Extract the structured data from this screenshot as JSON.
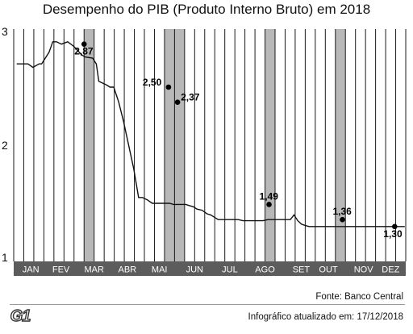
{
  "chart_data": {
    "type": "line",
    "title": "Desempenho do PIB (Produto Interno Bruto) em 2018",
    "xlabel": "",
    "ylabel": "",
    "ylim": [
      1,
      3
    ],
    "yticks": [
      "1",
      "2",
      "3"
    ],
    "months": [
      "JAN",
      "FEV",
      "MAR",
      "ABR",
      "MAI",
      "JUN",
      "JUL",
      "AGO",
      "SET",
      "OUT",
      "NOV",
      "DEZ"
    ],
    "grid": true,
    "series": [
      {
        "x": [
          0,
          0.5,
          0.9,
          1.3,
          1.8,
          2.0,
          2.6,
          2.9,
          3.2,
          3.6,
          4.1,
          4.6,
          5.2,
          5.5,
          6.1,
          6.4,
          6.6,
          7.2,
          7.5,
          7.8,
          8.2,
          8.6,
          9.0,
          9.4,
          9.8,
          10.1,
          10.5,
          10.9,
          11.2,
          11.5,
          11.7,
          11.9,
          12.1,
          12.3,
          12.6,
          12.8,
          13.0,
          13.3,
          13.6,
          13.9,
          14.2,
          14.5,
          14.9,
          15.3,
          15.6,
          15.9,
          16.2,
          16.5,
          16.8,
          17.1,
          17.4,
          17.8,
          18.2,
          18.6,
          19.0,
          19.4,
          19.8,
          20.2,
          20.5,
          20.8,
          21.1,
          21.4,
          21.7,
          22.0,
          22.3,
          22.6,
          22.9,
          23.2,
          23.5,
          23.8,
          24.1,
          24.4,
          24.7,
          25.0,
          25.3,
          25.6,
          25.9,
          26.2,
          26.5,
          26.8,
          27.1,
          27.4,
          27.7,
          28.0,
          28.3,
          28.6,
          28.9,
          29.2,
          29.5,
          29.8,
          30.1,
          30.4,
          30.8,
          31.2
        ],
        "y": [
          2.7,
          2.7,
          2.7,
          2.67,
          2.7,
          2.7,
          2.8,
          2.89,
          2.89,
          2.87,
          2.89,
          2.85,
          2.78,
          2.76,
          2.75,
          2.7,
          2.55,
          2.52,
          2.5,
          2.5,
          2.37,
          2.2,
          2.0,
          1.8,
          1.55,
          1.55,
          1.53,
          1.5,
          1.5,
          1.5,
          1.5,
          1.5,
          1.5,
          1.5,
          1.49,
          1.49,
          1.49,
          1.49,
          1.49,
          1.48,
          1.47,
          1.45,
          1.44,
          1.41,
          1.4,
          1.38,
          1.36,
          1.36,
          1.36,
          1.36,
          1.36,
          1.36,
          1.35,
          1.35,
          1.35,
          1.35,
          1.35,
          1.36,
          1.36,
          1.36,
          1.36,
          1.36,
          1.36,
          1.36,
          1.4,
          1.35,
          1.32,
          1.31,
          1.3,
          1.3,
          1.3,
          1.3,
          1.3,
          1.3,
          1.3,
          1.3,
          1.3,
          1.3,
          1.3,
          1.3,
          1.3,
          1.3,
          1.3,
          1.3,
          1.3,
          1.3,
          1.3,
          1.3,
          1.3,
          1.3,
          1.3,
          1.3,
          1.3,
          1.3
        ]
      }
    ],
    "highlighted_points": [
      {
        "x": 7.0,
        "y": 2.87,
        "label": "2,87"
      },
      {
        "x": 15.4,
        "y": 2.5,
        "label": "2,50"
      },
      {
        "x": 16.3,
        "y": 2.37,
        "label": "2,37"
      },
      {
        "x": 25.4,
        "y": 1.49,
        "label": "1,49"
      },
      {
        "x": 32.7,
        "y": 1.36,
        "label": "1,36"
      },
      {
        "x": 37.9,
        "y": 1.3,
        "label": "1,30"
      }
    ]
  },
  "colors": {
    "line": "#111111",
    "grid": "#1a1a1a",
    "highlight_band": "#b8b8b8",
    "month_bar_bg": "#5c5c5c",
    "month_bar_text": "#ffffff"
  },
  "footer": {
    "source": "Fonte: Banco Central",
    "updated": "Infográfico atualizado em: 17/12/2018",
    "logo": "G1"
  }
}
